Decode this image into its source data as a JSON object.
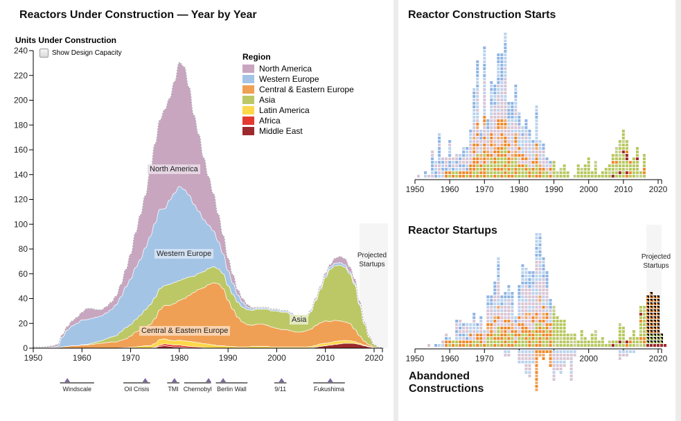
{
  "left": {
    "title": "Reactors Under Construction — Year by Year",
    "ylabel": "Units Under Construction",
    "checkbox_label": "Show Design Capacity",
    "projected_label": [
      "Projected",
      "Startups"
    ],
    "area_labels": {
      "north_america": "North America",
      "western_europe": "Western Europe",
      "asia": "Asia",
      "central_eastern_europe": "Central & Eastern Europe"
    },
    "legend": {
      "title": "Region",
      "items": [
        {
          "name": "North America",
          "color": "#c8a6c0"
        },
        {
          "name": "Western Europe",
          "color": "#a4c4e6"
        },
        {
          "name": "Central & Eastern Europe",
          "color": "#f0a054"
        },
        {
          "name": "Asia",
          "color": "#bcc865"
        },
        {
          "name": "Latin America",
          "color": "#fcd84a"
        },
        {
          "name": "Africa",
          "color": "#e43a30"
        },
        {
          "name": "Middle East",
          "color": "#9c2a2c"
        }
      ]
    },
    "events": [
      {
        "label": "Windscale",
        "year": 1957,
        "start": 1955.5,
        "end": 1962.5
      },
      {
        "label": "Oil Crisis",
        "year": 1973,
        "start": 1968.5,
        "end": 1974
      },
      {
        "label": "TMI",
        "year": 1979,
        "start": 1977.5,
        "end": 1980
      },
      {
        "label": "Chernobyl",
        "year": 1986,
        "start": 1981,
        "end": 1986.5
      },
      {
        "label": "Berlin Wall",
        "year": 1989,
        "start": 1987.5,
        "end": 1994
      },
      {
        "label": "9/11",
        "year": 2001,
        "start": 1999.5,
        "end": 2002
      },
      {
        "label": "Fukushima",
        "year": 2011,
        "start": 2007.5,
        "end": 2014
      }
    ]
  },
  "chart_data": [
    {
      "type": "area",
      "title": "Reactors Under Construction — Year by Year",
      "xlabel": "",
      "ylabel": "Units Under Construction",
      "xlim": [
        1950,
        2022
      ],
      "ylim": [
        0,
        240
      ],
      "xticks": [
        1950,
        1960,
        1970,
        1980,
        1990,
        2000,
        2010,
        2020
      ],
      "yticks": [
        0,
        20,
        40,
        60,
        80,
        100,
        120,
        140,
        160,
        180,
        200,
        220,
        240
      ],
      "projected_from": 2017,
      "legend_position": "top-right",
      "x": [
        1950,
        1952,
        1954,
        1955,
        1956,
        1957,
        1958,
        1959,
        1960,
        1961,
        1962,
        1963,
        1964,
        1965,
        1966,
        1967,
        1968,
        1969,
        1970,
        1971,
        1972,
        1973,
        1974,
        1975,
        1976,
        1977,
        1978,
        1979,
        1980,
        1981,
        1982,
        1983,
        1984,
        1985,
        1986,
        1987,
        1988,
        1989,
        1990,
        1991,
        1992,
        1993,
        1994,
        1995,
        1996,
        1997,
        1998,
        1999,
        2000,
        2001,
        2002,
        2003,
        2004,
        2005,
        2006,
        2007,
        2008,
        2009,
        2010,
        2011,
        2012,
        2013,
        2014,
        2015,
        2016,
        2017,
        2018,
        2019,
        2020,
        2021,
        2022
      ],
      "series": [
        {
          "name": "Middle East",
          "values": [
            0,
            0,
            0,
            0,
            0,
            0,
            0,
            0,
            0,
            0,
            0,
            0,
            0,
            0,
            0,
            0,
            0,
            0,
            0,
            0,
            0,
            0,
            0,
            0.5,
            1.5,
            2,
            1.5,
            1,
            1,
            0.5,
            0.3,
            0.2,
            0.1,
            0,
            0,
            0,
            0,
            0,
            0,
            0,
            0,
            0,
            0,
            0,
            0,
            0,
            0,
            0,
            0,
            0,
            0,
            0,
            0,
            0,
            0,
            0.3,
            0.8,
            1.5,
            2,
            2.5,
            3,
            3.5,
            4,
            4,
            3.8,
            3,
            2,
            1,
            0.3,
            0,
            0
          ]
        },
        {
          "name": "Africa",
          "values": [
            0,
            0,
            0,
            0,
            0,
            0,
            0,
            0,
            0,
            0,
            0,
            0,
            0,
            0,
            0,
            0,
            0,
            0,
            0,
            0,
            0,
            0,
            0,
            0.3,
            1,
            1.5,
            1.5,
            1.5,
            1.5,
            1.5,
            1.2,
            1,
            0.8,
            0.5,
            0.3,
            0.2,
            0,
            0,
            0,
            0,
            0,
            0,
            0,
            0,
            0,
            0,
            0,
            0,
            0,
            0,
            0,
            0,
            0,
            0,
            0,
            0,
            0,
            0,
            0,
            0,
            0,
            0,
            0,
            0,
            0,
            0,
            0,
            0,
            0,
            0,
            0
          ]
        },
        {
          "name": "Latin America",
          "values": [
            0,
            0,
            0,
            0,
            0,
            0,
            0,
            0,
            0,
            0,
            0,
            0,
            0,
            0,
            0,
            0,
            0.3,
            0.5,
            0.8,
            1,
            1.5,
            2,
            2,
            3,
            4.5,
            4,
            3.5,
            3.5,
            4,
            4,
            4,
            3.8,
            3.5,
            3.2,
            3,
            2.5,
            2,
            2,
            1.5,
            1.3,
            1,
            1,
            1,
            1.5,
            1.5,
            1.5,
            1.5,
            1,
            1,
            1,
            1,
            1,
            1,
            1,
            1,
            1,
            1.5,
            2,
            2,
            2,
            2.5,
            2.5,
            2.2,
            2,
            1.5,
            1,
            0.5,
            0.3,
            0,
            0,
            0
          ]
        },
        {
          "name": "Central & Eastern Europe",
          "values": [
            0.5,
            0.5,
            0.5,
            0.5,
            1,
            1.5,
            2,
            2,
            2.5,
            2.5,
            3,
            3.5,
            4,
            4.5,
            5,
            5,
            6,
            7,
            9,
            12,
            13,
            15,
            17,
            20,
            24,
            27,
            28,
            30,
            32,
            34,
            37,
            40,
            43,
            45,
            48,
            50,
            50,
            46,
            37,
            30,
            24,
            20,
            18,
            17,
            18,
            18,
            17,
            16,
            15,
            14,
            14,
            13,
            12,
            12,
            13,
            14,
            16,
            17,
            18,
            17,
            17,
            16,
            15,
            14,
            10,
            6,
            3,
            1.5,
            0.5,
            0,
            0
          ]
        },
        {
          "name": "Asia",
          "values": [
            0,
            0,
            0,
            0,
            0,
            0,
            0,
            0,
            0.3,
            0.5,
            1,
            1.5,
            2,
            3,
            4,
            5,
            7,
            9,
            9,
            10,
            12,
            14,
            16,
            17,
            17,
            16,
            17,
            17,
            16,
            16,
            15,
            13,
            13,
            13,
            13,
            13,
            12,
            12,
            12,
            12,
            12,
            12,
            12,
            12,
            12,
            12,
            13,
            13,
            14,
            14,
            14,
            13,
            10,
            8,
            9,
            14,
            20,
            27,
            35,
            42,
            44,
            45,
            44,
            40,
            36,
            25,
            14,
            6,
            2,
            0.5,
            0
          ]
        },
        {
          "name": "Western Europe",
          "values": [
            0,
            0,
            0.3,
            1,
            8,
            13,
            16,
            18,
            20,
            20,
            20,
            20,
            20,
            21,
            22,
            25,
            28,
            33,
            37,
            42,
            45,
            50,
            55,
            60,
            64,
            62,
            68,
            72,
            76,
            72,
            66,
            58,
            50,
            42,
            35,
            29,
            22,
            16,
            12,
            9,
            6,
            4,
            2,
            1,
            1,
            1,
            1,
            1,
            1,
            1,
            1,
            1,
            1,
            1,
            1,
            1,
            1,
            1.5,
            2,
            2,
            2,
            2,
            2,
            1.5,
            1.5,
            1,
            0.5,
            0.3,
            0,
            0,
            0
          ]
        },
        {
          "name": "North America",
          "values": [
            0.5,
            0.5,
            1,
            1.5,
            2,
            3,
            4,
            5,
            6,
            9,
            8,
            6,
            5,
            5,
            6,
            7,
            10,
            14,
            20,
            28,
            36,
            42,
            52,
            64,
            72,
            80,
            82,
            90,
            100,
            99,
            87,
            72,
            62,
            50,
            39,
            30,
            22,
            15,
            10,
            7,
            4,
            3,
            2,
            1,
            0.5,
            0.5,
            0.5,
            0.5,
            0.5,
            0.5,
            0.5,
            0.5,
            0.5,
            0.5,
            0.5,
            0.5,
            1,
            1,
            1.5,
            2,
            4,
            5,
            5,
            4,
            3,
            2,
            1,
            0.5,
            0,
            0,
            0
          ]
        }
      ]
    },
    {
      "type": "bar",
      "title": "Reactor Construction Starts",
      "xlim": [
        1950,
        2022
      ],
      "xticks": [
        1950,
        1960,
        1970,
        1980,
        1990,
        2000,
        2010,
        2020
      ],
      "note": "stacked unit squares per year, colored by region",
      "years": [
        1951,
        1953,
        1954,
        1955,
        1956,
        1957,
        1958,
        1959,
        1960,
        1961,
        1962,
        1963,
        1964,
        1965,
        1966,
        1967,
        1968,
        1969,
        1970,
        1971,
        1972,
        1973,
        1974,
        1975,
        1976,
        1977,
        1978,
        1979,
        1980,
        1981,
        1982,
        1983,
        1984,
        1985,
        1986,
        1987,
        1988,
        1989,
        1990,
        1991,
        1992,
        1993,
        1994,
        1996,
        1997,
        1998,
        1999,
        2000,
        2001,
        2002,
        2003,
        2004,
        2005,
        2006,
        2007,
        2008,
        2009,
        2010,
        2011,
        2012,
        2013,
        2014,
        2015,
        2016
      ],
      "counts": [
        1,
        2,
        1,
        8,
        5,
        13,
        6,
        6,
        11,
        6,
        7,
        7,
        9,
        9,
        14,
        26,
        34,
        14,
        38,
        17,
        28,
        27,
        36,
        36,
        42,
        22,
        22,
        27,
        19,
        15,
        17,
        14,
        11,
        21,
        11,
        10,
        6,
        5,
        5,
        2,
        3,
        4,
        2,
        1,
        4,
        3,
        4,
        6,
        2,
        5,
        1,
        2,
        3,
        4,
        7,
        9,
        11,
        14,
        11,
        5,
        6,
        9,
        2,
        7
      ]
    },
    {
      "type": "bar",
      "title": "Reactor Startups",
      "xlim": [
        1950,
        2022
      ],
      "xticks": [
        1950,
        1960,
        1970,
        2000,
        2020
      ],
      "projected_from": 2017,
      "years": [
        1954,
        1956,
        1957,
        1958,
        1959,
        1960,
        1961,
        1962,
        1963,
        1964,
        1965,
        1966,
        1967,
        1968,
        1969,
        1970,
        1971,
        1972,
        1973,
        1974,
        1975,
        1976,
        1977,
        1978,
        1979,
        1980,
        1981,
        1982,
        1983,
        1984,
        1985,
        1986,
        1987,
        1988,
        1989,
        1990,
        1991,
        1992,
        1993,
        1994,
        1995,
        1996,
        1997,
        1998,
        1999,
        2000,
        2001,
        2002,
        2003,
        2004,
        2005,
        2006,
        2007,
        2008,
        2009,
        2010,
        2011,
        2012,
        2013,
        2014,
        2015,
        2016,
        2017,
        2018,
        2019,
        2020,
        2021,
        2022
      ],
      "counts": [
        1,
        1,
        1,
        2,
        4,
        3,
        2,
        8,
        8,
        7,
        7,
        7,
        10,
        7,
        9,
        5,
        15,
        15,
        19,
        26,
        15,
        16,
        18,
        16,
        9,
        18,
        24,
        23,
        22,
        22,
        33,
        33,
        26,
        22,
        14,
        12,
        9,
        8,
        8,
        4,
        4,
        4,
        2,
        5,
        3,
        2,
        4,
        5,
        2,
        3,
        1,
        2,
        2,
        2,
        7,
        6,
        2,
        3,
        5,
        3,
        12,
        12,
        15,
        16,
        15,
        15,
        4,
        1
      ]
    },
    {
      "type": "bar",
      "title": "Abandoned Constructions",
      "xlim": [
        1950,
        2022
      ],
      "years": [
        1976,
        1977,
        1980,
        1981,
        1982,
        1983,
        1984,
        1985,
        1986,
        1987,
        1988,
        1989,
        1990,
        1991,
        1992,
        1993,
        1994,
        1995,
        1996,
        2009,
        2010,
        2011,
        2012,
        2013
      ],
      "counts": [
        2,
        2,
        4,
        4,
        7,
        8,
        4,
        12,
        2,
        3,
        1,
        5,
        9,
        6,
        7,
        5,
        3,
        9,
        2,
        3,
        2,
        2,
        1,
        1
      ]
    }
  ],
  "right": {
    "starts_title": "Reactor Construction Starts",
    "startups_title": "Reactor Startups",
    "abandoned_title": [
      "Abandoned",
      "Constructions"
    ],
    "projected_label": [
      "Projected",
      "Startups"
    ]
  }
}
